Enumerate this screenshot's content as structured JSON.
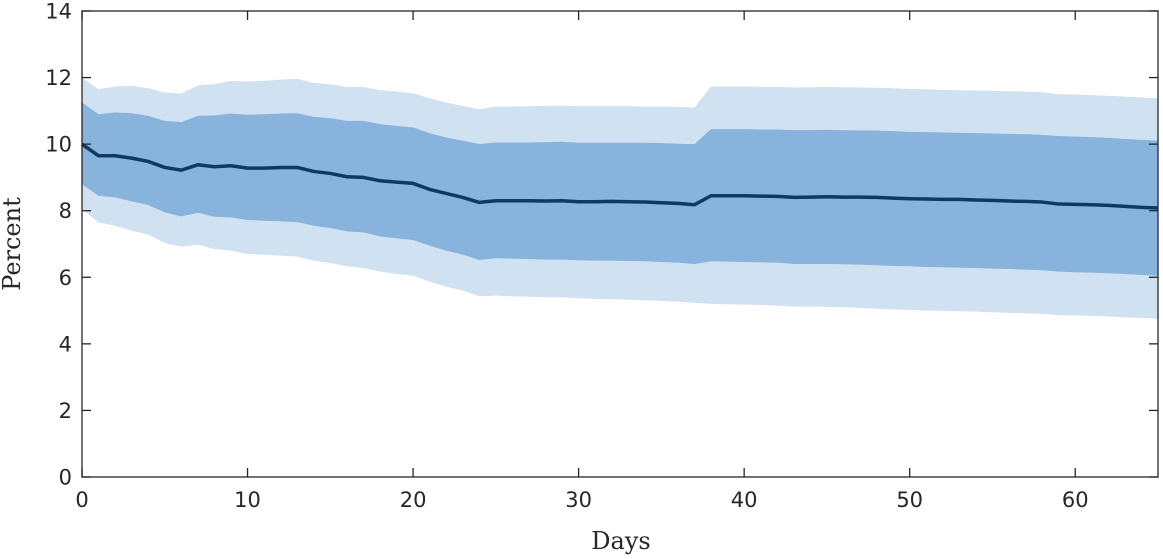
{
  "chart_data": {
    "type": "area",
    "title": "",
    "xlabel": "Days",
    "ylabel": "Percent",
    "xlim": [
      0,
      65
    ],
    "ylim": [
      0,
      14
    ],
    "xticks": [
      0,
      10,
      20,
      30,
      40,
      50,
      60
    ],
    "yticks": [
      0,
      2,
      4,
      6,
      8,
      10,
      12,
      14
    ],
    "grid": false,
    "colors": {
      "outer_band": "#d0e1f2",
      "inner_band": "#87b3dc",
      "median_line": "#0d3a63",
      "axis": "#262626"
    },
    "x": [
      0,
      1,
      2,
      3,
      4,
      5,
      6,
      7,
      8,
      9,
      10,
      11,
      12,
      13,
      14,
      15,
      16,
      17,
      18,
      19,
      20,
      21,
      22,
      23,
      24,
      25,
      26,
      27,
      28,
      29,
      30,
      31,
      32,
      33,
      34,
      35,
      36,
      37,
      38,
      39,
      40,
      41,
      42,
      43,
      44,
      45,
      46,
      47,
      48,
      49,
      50,
      51,
      52,
      53,
      54,
      55,
      56,
      57,
      58,
      59,
      60,
      61,
      62,
      63,
      64,
      65
    ],
    "series": [
      {
        "name": "median",
        "values": [
          10.0,
          9.65,
          9.65,
          9.58,
          9.48,
          9.3,
          9.22,
          9.38,
          9.32,
          9.35,
          9.28,
          9.28,
          9.3,
          9.3,
          9.18,
          9.12,
          9.02,
          9.0,
          8.9,
          8.86,
          8.82,
          8.64,
          8.52,
          8.4,
          8.25,
          8.3,
          8.3,
          8.3,
          8.29,
          8.3,
          8.27,
          8.27,
          8.28,
          8.27,
          8.26,
          8.24,
          8.22,
          8.18,
          8.45,
          8.45,
          8.45,
          8.44,
          8.43,
          8.4,
          8.41,
          8.42,
          8.41,
          8.41,
          8.4,
          8.38,
          8.36,
          8.35,
          8.34,
          8.34,
          8.32,
          8.31,
          8.29,
          8.28,
          8.26,
          8.2,
          8.19,
          8.18,
          8.16,
          8.13,
          8.1,
          8.08
        ]
      },
      {
        "name": "inner_upper",
        "values": [
          11.25,
          10.9,
          10.95,
          10.93,
          10.85,
          10.7,
          10.66,
          10.85,
          10.86,
          10.92,
          10.88,
          10.9,
          10.92,
          10.93,
          10.82,
          10.78,
          10.7,
          10.7,
          10.6,
          10.55,
          10.5,
          10.33,
          10.2,
          10.1,
          10.0,
          10.05,
          10.05,
          10.05,
          10.06,
          10.07,
          10.04,
          10.04,
          10.04,
          10.04,
          10.04,
          10.03,
          10.01,
          10.0,
          10.45,
          10.45,
          10.45,
          10.44,
          10.44,
          10.42,
          10.42,
          10.43,
          10.42,
          10.41,
          10.41,
          10.39,
          10.37,
          10.36,
          10.35,
          10.34,
          10.33,
          10.32,
          10.31,
          10.3,
          10.28,
          10.24,
          10.23,
          10.21,
          10.19,
          10.16,
          10.13,
          10.1
        ]
      },
      {
        "name": "inner_lower",
        "values": [
          8.8,
          8.45,
          8.4,
          8.28,
          8.17,
          7.95,
          7.83,
          7.94,
          7.82,
          7.8,
          7.72,
          7.7,
          7.68,
          7.66,
          7.55,
          7.48,
          7.38,
          7.35,
          7.23,
          7.17,
          7.12,
          6.95,
          6.8,
          6.68,
          6.52,
          6.57,
          6.56,
          6.55,
          6.53,
          6.53,
          6.51,
          6.5,
          6.5,
          6.49,
          6.48,
          6.46,
          6.44,
          6.4,
          6.48,
          6.47,
          6.46,
          6.45,
          6.44,
          6.4,
          6.4,
          6.4,
          6.39,
          6.38,
          6.36,
          6.34,
          6.33,
          6.31,
          6.3,
          6.29,
          6.28,
          6.26,
          6.25,
          6.23,
          6.21,
          6.17,
          6.15,
          6.14,
          6.12,
          6.1,
          6.07,
          6.05
        ]
      },
      {
        "name": "outer_upper",
        "values": [
          12.0,
          11.65,
          11.73,
          11.75,
          11.68,
          11.55,
          11.52,
          11.77,
          11.8,
          11.9,
          11.88,
          11.9,
          11.94,
          11.96,
          11.84,
          11.8,
          11.72,
          11.72,
          11.62,
          11.58,
          11.53,
          11.38,
          11.25,
          11.15,
          11.05,
          11.13,
          11.13,
          11.14,
          11.15,
          11.16,
          11.14,
          11.14,
          11.14,
          11.14,
          11.13,
          11.13,
          11.12,
          11.1,
          11.73,
          11.73,
          11.73,
          11.72,
          11.72,
          11.7,
          11.71,
          11.72,
          11.71,
          11.7,
          11.69,
          11.68,
          11.66,
          11.65,
          11.63,
          11.62,
          11.61,
          11.6,
          11.59,
          11.58,
          11.56,
          11.5,
          11.49,
          11.47,
          11.45,
          11.43,
          11.4,
          11.38
        ]
      },
      {
        "name": "outer_lower",
        "values": [
          8.05,
          7.65,
          7.55,
          7.4,
          7.28,
          7.03,
          6.92,
          6.98,
          6.85,
          6.8,
          6.7,
          6.68,
          6.65,
          6.62,
          6.5,
          6.43,
          6.33,
          6.28,
          6.17,
          6.1,
          6.05,
          5.87,
          5.72,
          5.6,
          5.43,
          5.45,
          5.43,
          5.42,
          5.4,
          5.4,
          5.37,
          5.35,
          5.34,
          5.33,
          5.31,
          5.29,
          5.27,
          5.23,
          5.2,
          5.19,
          5.18,
          5.17,
          5.15,
          5.12,
          5.12,
          5.11,
          5.1,
          5.08,
          5.06,
          5.04,
          5.02,
          5.0,
          4.99,
          4.98,
          4.97,
          4.95,
          4.93,
          4.92,
          4.9,
          4.86,
          4.85,
          4.84,
          4.82,
          4.8,
          4.78,
          4.75
        ]
      }
    ]
  }
}
